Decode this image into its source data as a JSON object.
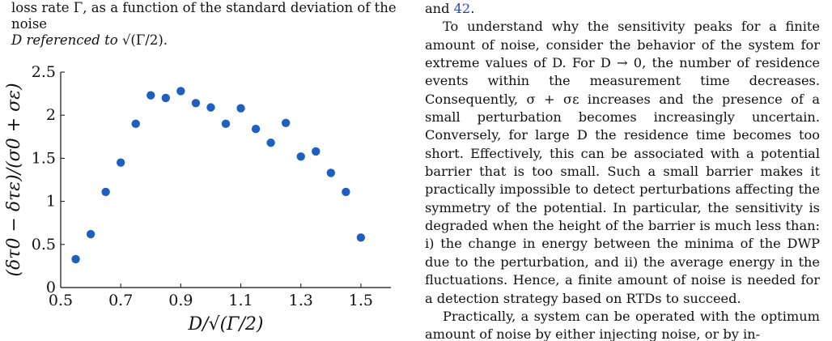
{
  "caption": {
    "line1": "loss rate Γ, as a function of the standard deviation of the noise",
    "line2_prefix": "D referenced to ",
    "line2_math": "√(Γ/2)."
  },
  "text_column": {
    "fragment_text": "and ",
    "fragment_cite": "42",
    "fragment_end": ".",
    "para1": "To understand why the sensitivity peaks for a finite amount of noise, consider the behavior of the system for extreme values of D. For D → 0, the number of residence events within the measurement time decreases. Consequently, σ + σε increases and the presence of a small perturbation becomes increasingly uncertain. Conversely, for large D the residence time becomes too short. Effectively, this can be associated with a potential barrier that is too small. Such a small barrier makes it practically impossible to detect perturbations affecting the symmetry of the potential. In particular, the sensitivity is degraded when the height of the barrier is much less than: i) the change in energy between the minima of the DWP due to the perturbation, and ii) the average energy in the fluctuations. Hence, a finite amount of noise is needed for a detection strategy based on RTDs to succeed.",
    "para2": "Practically, a system can be operated with the optimum amount of noise by either injecting noise, or by in-"
  },
  "chart_data": {
    "type": "scatter",
    "title": "",
    "xlabel": "D/√(Γ/2)",
    "ylabel": "(δτ0 − δτε)/(σ0 + σε)",
    "xlim": [
      0.5,
      1.6
    ],
    "ylim": [
      0,
      2.5
    ],
    "xticks": [
      "0.5",
      "0.7",
      "0.9",
      "1.1",
      "1.3",
      "1.5"
    ],
    "yticks": [
      "0",
      "0.5",
      "1",
      "1.5",
      "2",
      "2.5"
    ],
    "grid": false,
    "marker_color": "#1f5fbf",
    "series": [
      {
        "x": [
          0.55,
          0.6,
          0.65,
          0.7,
          0.75,
          0.8,
          0.85,
          0.9,
          0.95,
          1.0,
          1.05,
          1.1,
          1.15,
          1.2,
          1.25,
          1.3,
          1.35,
          1.4,
          1.45,
          1.5
        ],
        "y": [
          0.33,
          0.62,
          1.11,
          1.45,
          1.9,
          2.23,
          2.2,
          2.28,
          2.14,
          2.09,
          1.9,
          2.08,
          1.84,
          1.68,
          1.91,
          1.52,
          1.58,
          1.33,
          1.11,
          0.58
        ]
      }
    ]
  }
}
